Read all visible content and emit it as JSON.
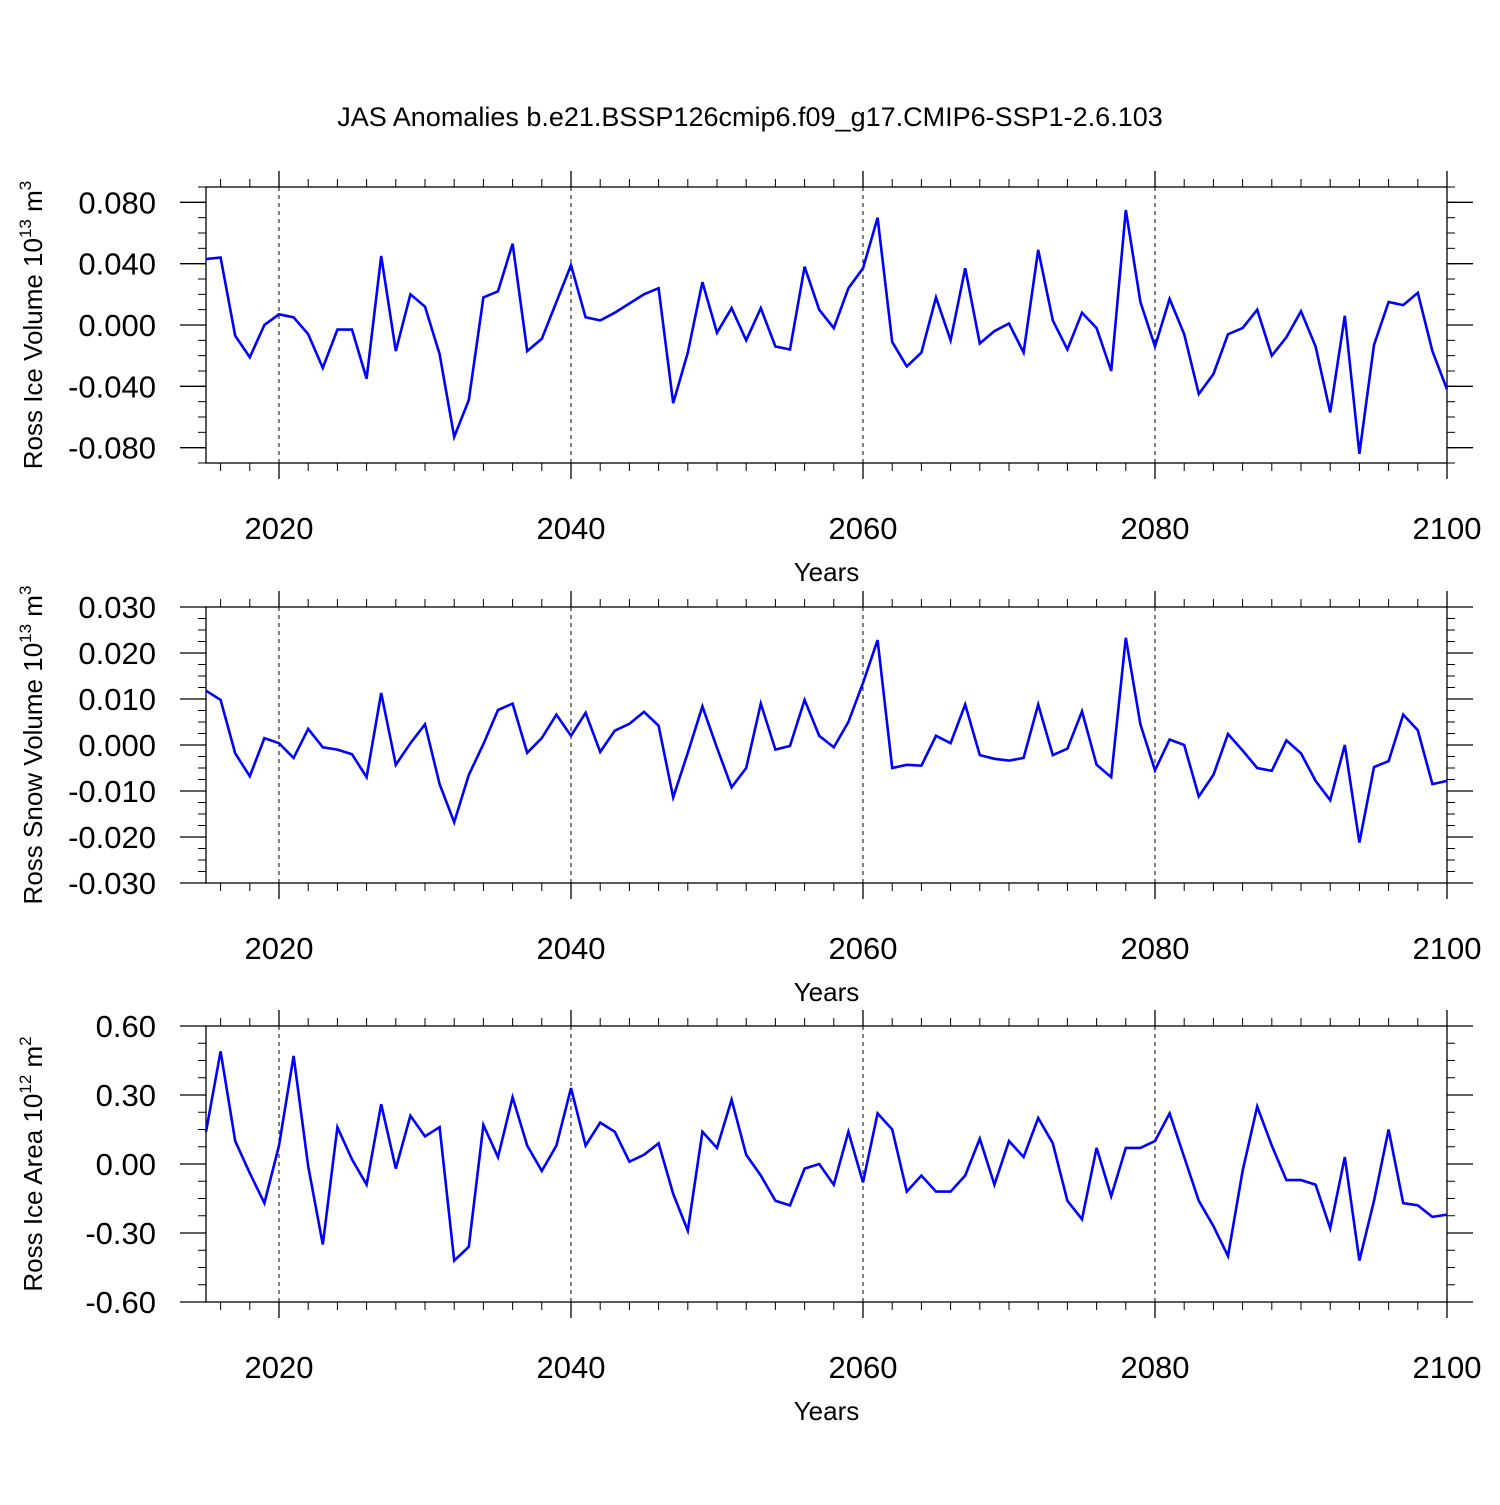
{
  "title": "JAS Anomalies b.e21.BSSP126cmip6.f09_g17.CMIP6-SSP1-2.6.103",
  "line_color": "#0000ff",
  "chart_data": [
    {
      "type": "line",
      "ylabel": "Ross Ice Volume 10",
      "ylabel_sup": "13",
      "ylabel_unit": " m",
      "ylabel_unit_sup": "3",
      "xlabel": "Years",
      "xlim": [
        2015,
        2100
      ],
      "ylim": [
        -0.09,
        0.09
      ],
      "yticks": [
        -0.08,
        -0.04,
        0.0,
        0.04,
        0.08
      ],
      "ytick_labels": [
        "-0.080",
        "-0.040",
        "0.000",
        "0.040",
        "0.080"
      ],
      "xticks": [
        2020,
        2040,
        2060,
        2080,
        2100
      ],
      "xtick_labels": [
        "2020",
        "2040",
        "2060",
        "2080",
        "2100"
      ],
      "x_start": 2015,
      "values": [
        0.043,
        0.044,
        -0.007,
        -0.021,
        0.0,
        0.007,
        0.005,
        -0.006,
        -0.028,
        -0.003,
        -0.003,
        -0.035,
        0.045,
        -0.017,
        0.02,
        0.012,
        -0.019,
        -0.073,
        -0.049,
        0.018,
        0.022,
        0.053,
        -0.017,
        -0.009,
        0.015,
        0.039,
        0.005,
        0.003,
        0.008,
        0.014,
        0.02,
        0.024,
        -0.051,
        -0.018,
        0.028,
        -0.005,
        0.011,
        -0.01,
        0.011,
        -0.014,
        -0.016,
        0.038,
        0.01,
        -0.002,
        0.024,
        0.037,
        0.07,
        -0.011,
        -0.027,
        -0.018,
        0.018,
        -0.01,
        0.037,
        -0.012,
        -0.004,
        0.001,
        -0.018,
        0.049,
        0.003,
        -0.016,
        0.008,
        -0.002,
        -0.03,
        0.075,
        0.015,
        -0.014,
        0.017,
        -0.006,
        -0.045,
        -0.032,
        -0.006,
        -0.002,
        0.01,
        -0.02,
        -0.008,
        0.009,
        -0.014,
        -0.057,
        0.006,
        -0.084,
        -0.013,
        0.015,
        0.013,
        0.021,
        -0.017,
        -0.042
      ]
    },
    {
      "type": "line",
      "ylabel": "Ross Snow Volume 10",
      "ylabel_sup": "13",
      "ylabel_unit": " m",
      "ylabel_unit_sup": "3",
      "xlabel": "Years",
      "xlim": [
        2015,
        2100
      ],
      "ylim": [
        -0.03,
        0.03
      ],
      "yticks": [
        -0.03,
        -0.02,
        -0.01,
        0.0,
        0.01,
        0.02,
        0.03
      ],
      "ytick_labels": [
        "-0.030",
        "-0.020",
        "-0.010",
        "0.000",
        "0.010",
        "0.020",
        "0.030"
      ],
      "xticks": [
        2020,
        2040,
        2060,
        2080,
        2100
      ],
      "xtick_labels": [
        "2020",
        "2040",
        "2060",
        "2080",
        "2100"
      ],
      "x_start": 2015,
      "values": [
        0.0118,
        0.0098,
        -0.0018,
        -0.0068,
        0.0015,
        0.0004,
        -0.0028,
        0.0035,
        -0.0005,
        -0.001,
        -0.002,
        -0.007,
        0.0113,
        -0.0043,
        0.0004,
        0.0045,
        -0.0085,
        -0.0168,
        -0.0065,
        0.0002,
        0.0076,
        0.009,
        -0.0017,
        0.0015,
        0.0066,
        0.002,
        0.007,
        -0.0015,
        0.0031,
        0.0046,
        0.0072,
        0.0042,
        -0.0114,
        -0.0017,
        0.0084,
        -0.0006,
        -0.0092,
        -0.005,
        0.009,
        -0.001,
        -0.0002,
        0.0098,
        0.002,
        -0.0005,
        0.005,
        0.0135,
        0.0228,
        -0.005,
        -0.0043,
        -0.0045,
        0.002,
        0.0004,
        0.0088,
        -0.0022,
        -0.003,
        -0.0034,
        -0.0028,
        0.0088,
        -0.0022,
        -0.0008,
        0.0073,
        -0.0043,
        -0.007,
        0.0233,
        0.0045,
        -0.0055,
        0.0012,
        0.0,
        -0.0112,
        -0.0065,
        0.0024,
        -0.0012,
        -0.005,
        -0.0056,
        0.001,
        -0.0018,
        -0.0078,
        -0.012,
        0.0,
        -0.0212,
        -0.0048,
        -0.0035,
        0.0066,
        0.0032,
        -0.0085,
        -0.0078
      ]
    },
    {
      "type": "line",
      "ylabel": "Ross Ice Area 10",
      "ylabel_sup": "12",
      "ylabel_unit": " m",
      "ylabel_unit_sup": "2",
      "xlabel": "Years",
      "xlim": [
        2015,
        2100
      ],
      "ylim": [
        -0.6,
        0.6
      ],
      "yticks": [
        -0.6,
        -0.3,
        0.0,
        0.3,
        0.6
      ],
      "ytick_labels": [
        "-0.60",
        "-0.30",
        "0.00",
        "0.30",
        "0.60"
      ],
      "xticks": [
        2020,
        2040,
        2060,
        2080,
        2100
      ],
      "xtick_labels": [
        "2020",
        "2040",
        "2060",
        "2080",
        "2100"
      ],
      "x_start": 2015,
      "values": [
        0.14,
        0.49,
        0.1,
        -0.04,
        -0.17,
        0.08,
        0.47,
        -0.01,
        -0.35,
        0.16,
        0.02,
        -0.09,
        0.26,
        -0.02,
        0.21,
        0.12,
        0.16,
        -0.42,
        -0.36,
        0.17,
        0.03,
        0.29,
        0.08,
        -0.03,
        0.08,
        0.33,
        0.08,
        0.18,
        0.14,
        0.01,
        0.04,
        0.09,
        -0.13,
        -0.29,
        0.14,
        0.07,
        0.28,
        0.04,
        -0.05,
        -0.16,
        -0.18,
        -0.02,
        0.0,
        -0.09,
        0.14,
        -0.08,
        0.22,
        0.15,
        -0.12,
        -0.05,
        -0.12,
        -0.12,
        -0.05,
        0.11,
        -0.09,
        0.1,
        0.03,
        0.2,
        0.09,
        -0.16,
        -0.24,
        0.07,
        -0.14,
        0.07,
        0.07,
        0.1,
        0.22,
        0.03,
        -0.16,
        -0.27,
        -0.4,
        -0.03,
        0.25,
        0.08,
        -0.07,
        -0.07,
        -0.09,
        -0.28,
        0.03,
        -0.42,
        -0.16,
        0.15,
        -0.17,
        -0.18,
        -0.23,
        -0.22
      ]
    }
  ]
}
